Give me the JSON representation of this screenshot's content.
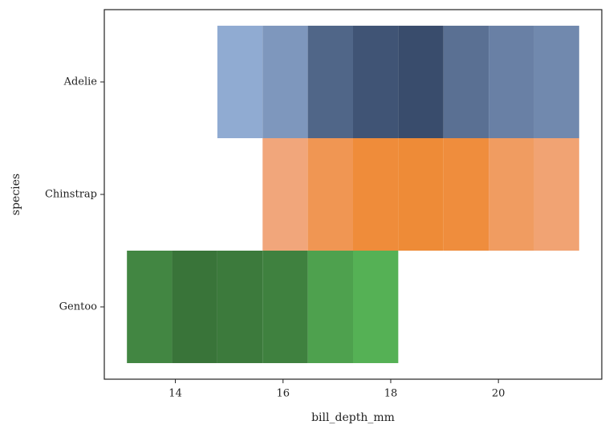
{
  "chart_data": {
    "type": "histogram2d",
    "x_label": "bill_depth_mm",
    "y_label": "species",
    "bins": [
      13.1,
      13.94,
      14.78,
      15.62,
      16.46,
      17.3,
      18.14,
      18.98,
      19.82,
      20.66,
      21.5
    ],
    "series": [
      {
        "name": "Adelie",
        "cmap": [
          "#a9c6f0",
          "#394c6c"
        ],
        "values": [
          null,
          null,
          2,
          6,
          25,
          35,
          40,
          20,
          13,
          10
        ]
      },
      {
        "name": "Chinstrap",
        "cmap": [
          "#f3b59e",
          "#ec7400"
        ],
        "values": [
          null,
          null,
          null,
          2,
          9,
          16,
          17,
          15,
          6,
          3
        ]
      },
      {
        "name": "Gentoo",
        "cmap": [
          "#66d866",
          "#356a35"
        ],
        "values": [
          22,
          33,
          29,
          25,
          10,
          5,
          null,
          null,
          null,
          null
        ]
      }
    ],
    "xlim": [
      12.68,
      21.92
    ],
    "xticks": [
      14,
      16,
      18,
      20
    ]
  }
}
